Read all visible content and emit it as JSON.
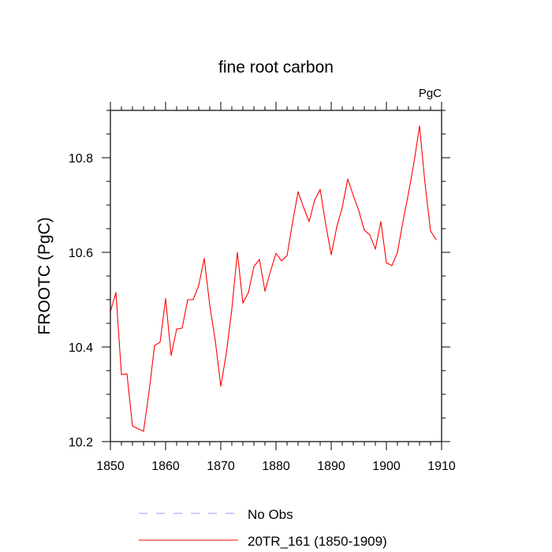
{
  "chart_data": {
    "type": "line",
    "title": "fine root carbon",
    "units_label": "PgC",
    "xlabel": "",
    "ylabel": "FROOTC  (PgC)",
    "xlim": [
      1850,
      1910
    ],
    "ylim": [
      10.2,
      10.9
    ],
    "x_major_ticks": [
      1850,
      1860,
      1870,
      1880,
      1890,
      1900,
      1910
    ],
    "x_tick_labels": [
      "1850",
      "1860",
      "1870",
      "1880",
      "1890",
      "1900",
      "1910"
    ],
    "x_minor_step": 2,
    "y_major_ticks": [
      10.2,
      10.4,
      10.6,
      10.8
    ],
    "y_tick_labels": [
      "10.2",
      "10.4",
      "10.6",
      "10.8"
    ],
    "y_minor_step": 0.05,
    "grid": false,
    "series": [
      {
        "name": "20TR_161 (1850-1909)",
        "color": "#ff0000",
        "style": "solid",
        "x": [
          1850,
          1851,
          1852,
          1853,
          1854,
          1855,
          1856,
          1857,
          1858,
          1859,
          1860,
          1861,
          1862,
          1863,
          1864,
          1865,
          1866,
          1867,
          1868,
          1869,
          1870,
          1871,
          1872,
          1873,
          1874,
          1875,
          1876,
          1877,
          1878,
          1879,
          1880,
          1881,
          1882,
          1883,
          1884,
          1885,
          1886,
          1887,
          1888,
          1889,
          1890,
          1891,
          1892,
          1893,
          1894,
          1895,
          1896,
          1897,
          1898,
          1899,
          1900,
          1901,
          1902,
          1903,
          1904,
          1905,
          1906,
          1907,
          1908,
          1909
        ],
        "values": [
          10.475,
          10.515,
          10.342,
          10.343,
          10.233,
          10.227,
          10.222,
          10.305,
          10.403,
          10.41,
          10.502,
          10.382,
          10.438,
          10.44,
          10.5,
          10.5,
          10.53,
          10.587,
          10.488,
          10.413,
          10.317,
          10.387,
          10.48,
          10.6,
          10.493,
          10.515,
          10.57,
          10.585,
          10.518,
          10.56,
          10.598,
          10.582,
          10.593,
          10.663,
          10.728,
          10.695,
          10.665,
          10.71,
          10.733,
          10.66,
          10.595,
          10.653,
          10.695,
          10.755,
          10.72,
          10.688,
          10.647,
          10.637,
          10.607,
          10.665,
          10.578,
          10.572,
          10.6,
          10.665,
          10.725,
          10.79,
          10.867,
          10.745,
          10.645,
          10.627
        ]
      }
    ],
    "legend": {
      "placement": "bottom",
      "entries": [
        {
          "label": "No Obs",
          "color": "#9999ff",
          "style": "dashed"
        },
        {
          "label": "20TR_161 (1850-1909)",
          "color": "#ff0000",
          "style": "solid"
        }
      ]
    }
  }
}
